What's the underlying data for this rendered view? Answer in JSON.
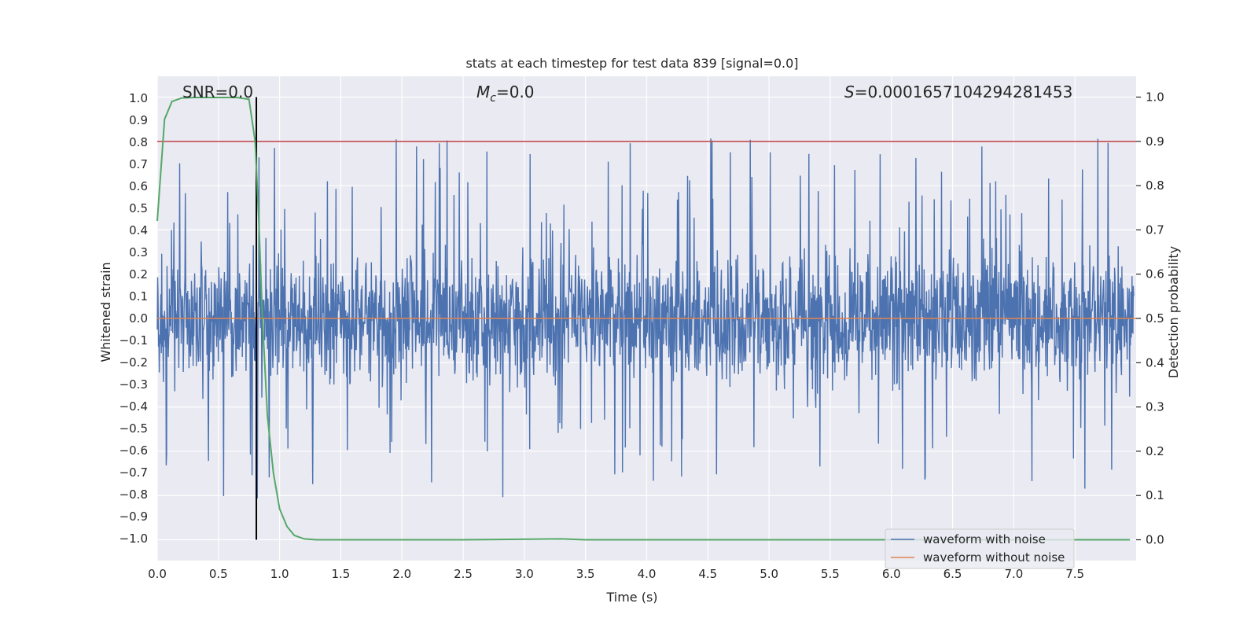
{
  "chart_data": {
    "type": "line",
    "title": "stats at each timestep for test data 839 [signal=0.0]",
    "xlabel": "Time (s)",
    "ylabel": "Whitened strain",
    "y2label": "Detection probability",
    "xlim": [
      0.0,
      8.0
    ],
    "ylim": [
      -1.1,
      1.1
    ],
    "y2lim": [
      -0.047,
      1.047
    ],
    "xticks": [
      "0.0",
      "0.5",
      "1.0",
      "1.5",
      "2.0",
      "2.5",
      "3.0",
      "3.5",
      "4.0",
      "4.5",
      "5.0",
      "5.5",
      "6.0",
      "6.5",
      "7.0",
      "7.5"
    ],
    "yticks": [
      "−1.0",
      "−0.9",
      "−0.8",
      "−0.7",
      "−0.6",
      "−0.5",
      "−0.4",
      "−0.3",
      "−0.2",
      "−0.1",
      "0.0",
      "0.1",
      "0.2",
      "0.3",
      "0.4",
      "0.5",
      "0.6",
      "0.7",
      "0.8",
      "0.9",
      "1.0"
    ],
    "y2ticks": [
      "0.0",
      "0.1",
      "0.2",
      "0.3",
      "0.4",
      "0.5",
      "0.6",
      "0.7",
      "0.8",
      "0.9",
      "1.0"
    ],
    "annotations": {
      "snr": "SNR=0.0",
      "mc_symbol": "M",
      "mc_sub": "c",
      "mc_value": "=0.0",
      "s_symbol": "S",
      "s_value": "=0.0001657104294281453"
    },
    "grid": true,
    "legend_position": "lower-right",
    "threshold_y2": 0.9,
    "marker_x": 0.81,
    "noise_envelope": {
      "max": 0.97,
      "min": -1.0,
      "typical_amplitude": 0.4
    },
    "series": [
      {
        "name": "waveform with noise",
        "color": "#4c72b0",
        "axis": "left"
      },
      {
        "name": "waveform without noise",
        "color": "#dd8452",
        "axis": "left",
        "values": "constant 0.0"
      },
      {
        "name": "",
        "color": "#55a868",
        "axis": "right",
        "x": [
          0.0,
          0.06,
          0.12,
          0.2,
          0.3,
          0.5,
          0.65,
          0.75,
          0.8,
          0.83,
          0.86,
          0.9,
          0.95,
          1.0,
          1.06,
          1.12,
          1.2,
          1.3,
          1.6,
          2.5,
          3.3,
          3.5,
          5.0,
          6.5,
          7.95
        ],
        "values": [
          0.72,
          0.95,
          0.99,
          0.998,
          0.999,
          0.999,
          0.999,
          0.995,
          0.9,
          0.72,
          0.5,
          0.28,
          0.15,
          0.07,
          0.03,
          0.01,
          0.002,
          0.0,
          0.0,
          0.0,
          0.002,
          0.0,
          0.0,
          0.0,
          0.0
        ]
      }
    ],
    "threshold_color": "#c44e52",
    "marker_color": "#000000",
    "background": "#eaeaf2"
  }
}
